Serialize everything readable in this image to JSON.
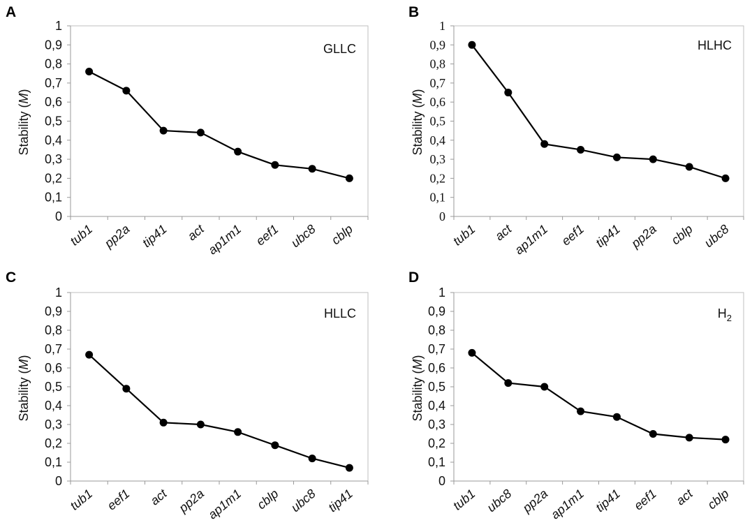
{
  "chart_data": [
    {
      "panel": "A",
      "type": "line",
      "condition": "GLLC",
      "condition_sub": "",
      "ylabel": "Stability",
      "ylabel_var": "M",
      "ylim": [
        0,
        1
      ],
      "yticks": [
        "0",
        "0,1",
        "0,2",
        "0,3",
        "0,4",
        "0,5",
        "0,6",
        "0,7",
        "0,8",
        "0,9",
        "1"
      ],
      "categories": [
        "tub1",
        "pp2a",
        "tip41",
        "act",
        "ap1m1",
        "eef1",
        "ubc8",
        "cblp"
      ],
      "values": [
        0.76,
        0.66,
        0.45,
        0.44,
        0.34,
        0.27,
        0.25,
        0.2
      ],
      "grid": false
    },
    {
      "panel": "B",
      "type": "line",
      "condition": "HLHC",
      "condition_sub": "",
      "ylabel": "Stability",
      "ylabel_var": "M",
      "ylim": [
        0,
        1
      ],
      "yticks": [
        "0",
        "0,1",
        "0,2",
        "0,3",
        "0,4",
        "0,5",
        "0,6",
        "0,7",
        "0,8",
        "0,9",
        "1"
      ],
      "categories": [
        "tub1",
        "act",
        "ap1m1",
        "eef1",
        "tip41",
        "pp2a",
        "cblp",
        "ubc8"
      ],
      "values": [
        0.9,
        0.65,
        0.38,
        0.35,
        0.31,
        0.3,
        0.26,
        0.2
      ],
      "grid": false
    },
    {
      "panel": "C",
      "type": "line",
      "condition": "HLLC",
      "condition_sub": "",
      "ylabel": "Stability",
      "ylabel_var": "M",
      "ylim": [
        0,
        1
      ],
      "yticks": [
        "0",
        "0,1",
        "0,2",
        "0,3",
        "0,4",
        "0,5",
        "0,6",
        "0,7",
        "0,8",
        "0,9",
        "1"
      ],
      "categories": [
        "tub1",
        "eef1",
        "act",
        "pp2a",
        "ap1m1",
        "cblp",
        "ubc8",
        "tip41"
      ],
      "values": [
        0.67,
        0.49,
        0.31,
        0.3,
        0.26,
        0.19,
        0.12,
        0.07
      ],
      "grid": false
    },
    {
      "panel": "D",
      "type": "line",
      "condition": "H",
      "condition_sub": "2",
      "ylabel": "Stability",
      "ylabel_var": "M",
      "ylim": [
        0,
        1
      ],
      "yticks": [
        "0",
        "0,1",
        "0,2",
        "0,3",
        "0,4",
        "0,5",
        "0,6",
        "0,7",
        "0,8",
        "0,9",
        "1"
      ],
      "categories": [
        "tub1",
        "ubc8",
        "pp2a",
        "ap1m1",
        "tip41",
        "eef1",
        "act",
        "cblp"
      ],
      "values": [
        0.68,
        0.52,
        0.5,
        0.37,
        0.34,
        0.25,
        0.23,
        0.22
      ],
      "grid": false
    }
  ]
}
